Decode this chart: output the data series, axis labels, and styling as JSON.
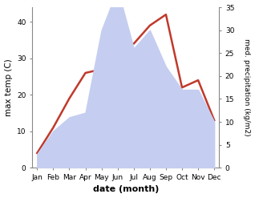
{
  "months": [
    "Jan",
    "Feb",
    "Mar",
    "Apr",
    "May",
    "Jun",
    "Jul",
    "Aug",
    "Sep",
    "Oct",
    "Nov",
    "Dec"
  ],
  "x": [
    1,
    2,
    3,
    4,
    5,
    6,
    7,
    8,
    9,
    10,
    11,
    12
  ],
  "temp": [
    4,
    11,
    19,
    26,
    27,
    35,
    34,
    39,
    42,
    22,
    24,
    13
  ],
  "precip": [
    3,
    8,
    11,
    12,
    30,
    39,
    26,
    30,
    22,
    17,
    17,
    10
  ],
  "temp_color": "#c0392b",
  "precip_fill_color": "#c5cef0",
  "ylabel_left": "max temp (C)",
  "ylabel_right": "med. precipitation (kg/m2)",
  "xlabel": "date (month)",
  "ylim_left": [
    0,
    44
  ],
  "ylim_right": [
    0,
    34
  ],
  "yticks_left": [
    0,
    10,
    20,
    30,
    40
  ],
  "yticks_right": [
    0,
    5,
    10,
    15,
    20,
    25,
    30,
    35
  ],
  "bg_color": "#ffffff",
  "spine_color": "#888888",
  "temp_linewidth": 1.8
}
